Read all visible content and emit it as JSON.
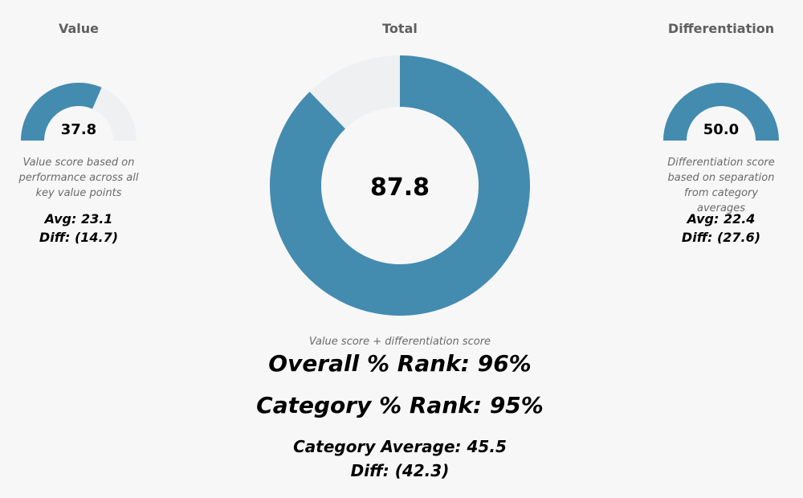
{
  "colors": {
    "filled": "#448bb0",
    "track": "#eef0f2",
    "hole": "#ffffff"
  },
  "chart_data": [
    {
      "type": "gauge",
      "title": "Value",
      "value": 37.8,
      "max": 60,
      "value_label": "37.8",
      "description": "Value score based on performance across all key value points",
      "avg": "Avg: 23.1",
      "diff": "Diff: (14.7)"
    },
    {
      "type": "pie",
      "title": "Total",
      "value": 87.8,
      "max": 100,
      "value_label": "87.8",
      "description": "Value score + differentiation score",
      "overall_rank": "Overall % Rank: 96%",
      "category_rank": "Category % Rank: 95%",
      "category_average": "Category Average: 45.5",
      "diff": "Diff: (42.3)"
    },
    {
      "type": "gauge",
      "title": "Differentiation",
      "value": 50.0,
      "max": 50,
      "value_label": "50.0",
      "description": "Differentiation score based on separation from category averages",
      "avg": "Avg: 22.4",
      "diff": "Diff: (27.6)"
    }
  ]
}
